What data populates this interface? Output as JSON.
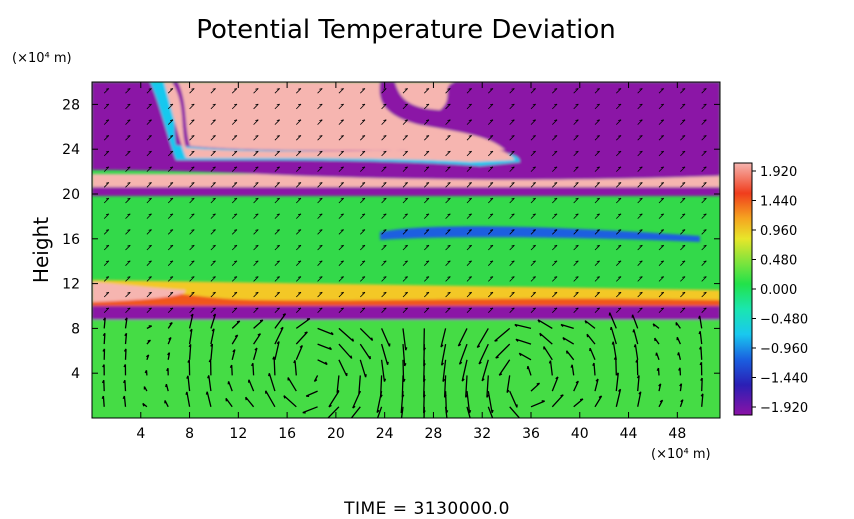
{
  "chart_data": {
    "type": "heatmap",
    "title": "Potential Temperature Deviation",
    "ylabel": "Height",
    "yunit": "(×10⁴ m)",
    "xunit": "(×10⁴ m)",
    "xlim": [
      0,
      51.5
    ],
    "ylim": [
      0,
      30
    ],
    "xticks": [
      "4",
      "8",
      "12",
      "16",
      "20",
      "24",
      "28",
      "32",
      "36",
      "40",
      "44",
      "48"
    ],
    "yticks": [
      "4",
      "8",
      "12",
      "16",
      "20",
      "24",
      "28"
    ],
    "colorbar": {
      "labels": [
        "1.920",
        "1.440",
        "0.960",
        "0.480",
        "0.000",
        "−0.480",
        "−0.960",
        "−1.440",
        "−1.920"
      ],
      "range": [
        -1.92,
        1.92
      ]
    },
    "footer": "TIME  =  3130000.0",
    "layers": [
      {
        "y_from": 0,
        "y_to": 9,
        "theta": 0.15,
        "desc": "green"
      },
      {
        "y_from": 9,
        "y_to": 10,
        "theta": -1.9,
        "desc": "purple"
      },
      {
        "y_from": 10,
        "y_to": 12,
        "theta": 0.9,
        "desc": "warm band (yellow/red, pink at left)"
      },
      {
        "y_from": 12,
        "y_to": 19,
        "theta": 0.15,
        "desc": "green with blue streak ~y=16"
      },
      {
        "y_from": 19,
        "y_to": 21,
        "theta": -1.9,
        "desc": "purple/pink bands"
      },
      {
        "y_from": 21,
        "y_to": 23,
        "theta": 1.9,
        "desc": "pink"
      },
      {
        "y_from": 23,
        "y_to": 30,
        "theta": -1.9,
        "desc": "purple, with pink plume x≈7–24"
      }
    ],
    "vortices": [
      {
        "x": 19.5,
        "y": 4,
        "direction": "counterclockwise"
      },
      {
        "x": 35,
        "y": 3.5,
        "direction": "clockwise"
      }
    ]
  }
}
